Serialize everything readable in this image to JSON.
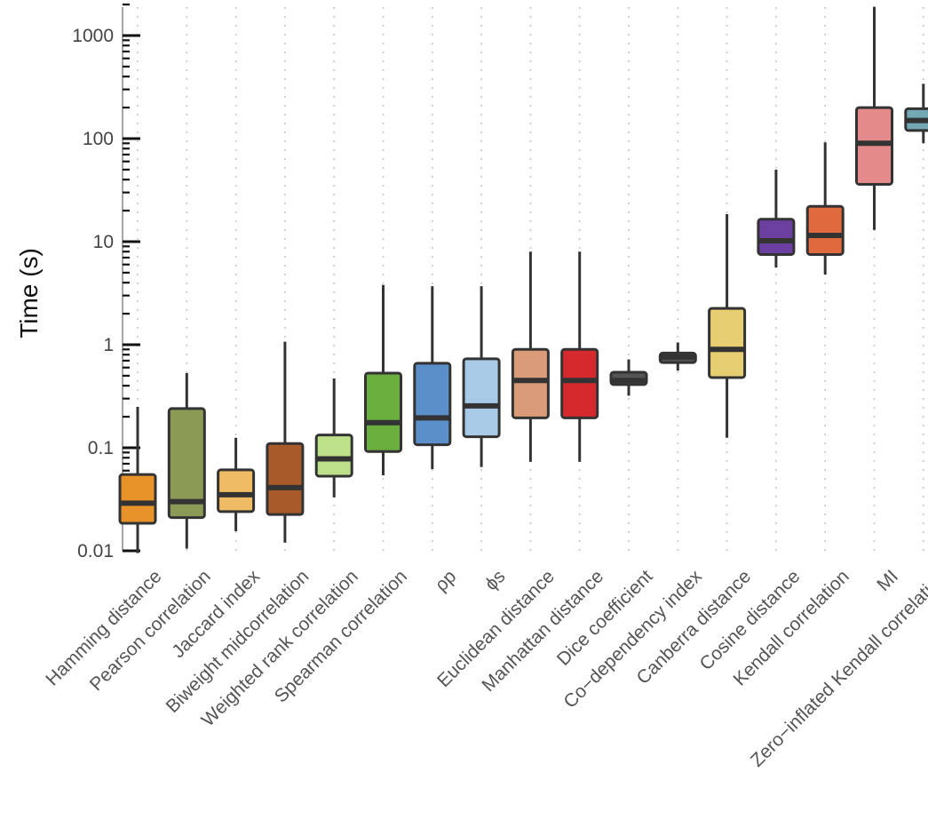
{
  "chart_data": {
    "type": "boxplot",
    "title": "",
    "xlabel": "",
    "ylabel": "Time (s)",
    "yscale": "log10",
    "ylim": [
      0.01,
      2000
    ],
    "yticks": [
      {
        "value": 0.01,
        "label": "0.01"
      },
      {
        "value": 0.1,
        "label": "0.1"
      },
      {
        "value": 1,
        "label": "1"
      },
      {
        "value": 10,
        "label": "10"
      },
      {
        "value": 100,
        "label": "100"
      },
      {
        "value": 1000,
        "label": "1000"
      }
    ],
    "grid": {
      "vertical": true,
      "horizontal": false
    },
    "categories": [
      {
        "label": "Hamming distance",
        "color": "#e8922a",
        "whisker_low": 0.0095,
        "q1": 0.0185,
        "median": 0.029,
        "q3": 0.055,
        "whisker_high": 0.25
      },
      {
        "label": "Pearson correlation",
        "color": "#8b9a55",
        "whisker_low": 0.0105,
        "q1": 0.021,
        "median": 0.03,
        "q3": 0.24,
        "whisker_high": 0.53
      },
      {
        "label": "Jaccard index",
        "color": "#f0bb65",
        "whisker_low": 0.0155,
        "q1": 0.024,
        "median": 0.035,
        "q3": 0.061,
        "whisker_high": 0.125
      },
      {
        "label": "Biweight midcorrelation",
        "color": "#a85a2a",
        "whisker_low": 0.012,
        "q1": 0.0225,
        "median": 0.041,
        "q3": 0.11,
        "whisker_high": 1.07
      },
      {
        "label": "Weighted rank correlation",
        "color": "#bde08a",
        "whisker_low": 0.033,
        "q1": 0.053,
        "median": 0.078,
        "q3": 0.133,
        "whisker_high": 0.47
      },
      {
        "label": "Spearman correlation",
        "color": "#6aae3e",
        "whisker_low": 0.054,
        "q1": 0.092,
        "median": 0.175,
        "q3": 0.53,
        "whisker_high": 3.8
      },
      {
        "label": "ρp",
        "color": "#5b8fc9",
        "whisker_low": 0.062,
        "q1": 0.107,
        "median": 0.195,
        "q3": 0.66,
        "whisker_high": 3.7
      },
      {
        "label": "ϕs",
        "color": "#a8cae6",
        "whisker_low": 0.065,
        "q1": 0.128,
        "median": 0.255,
        "q3": 0.73,
        "whisker_high": 3.7
      },
      {
        "label": "Euclidean distance",
        "color": "#d99b78",
        "whisker_low": 0.073,
        "q1": 0.195,
        "median": 0.45,
        "q3": 0.9,
        "whisker_high": 8.0
      },
      {
        "label": "Manhattan distance",
        "color": "#d6292d",
        "whisker_low": 0.073,
        "q1": 0.195,
        "median": 0.45,
        "q3": 0.9,
        "whisker_high": 8.0
      },
      {
        "label": "Dice coefficient",
        "color": "#555555",
        "whisker_low": 0.32,
        "q1": 0.41,
        "median": 0.45,
        "q3": 0.54,
        "whisker_high": 0.72
      },
      {
        "label": "Co−dependency index",
        "color": "#555555",
        "whisker_low": 0.56,
        "q1": 0.67,
        "median": 0.76,
        "q3": 0.83,
        "whisker_high": 1.05
      },
      {
        "label": "Canberra distance",
        "color": "#e8ce72",
        "whisker_low": 0.125,
        "q1": 0.48,
        "median": 0.9,
        "q3": 2.25,
        "whisker_high": 18.5
      },
      {
        "label": "Cosine distance",
        "color": "#6a3fa0",
        "whisker_low": 5.6,
        "q1": 7.5,
        "median": 10.2,
        "q3": 16.5,
        "whisker_high": 50.0
      },
      {
        "label": "Kendall correlation",
        "color": "#e06a3e",
        "whisker_low": 4.8,
        "q1": 7.5,
        "median": 11.5,
        "q3": 22.0,
        "whisker_high": 92.0
      },
      {
        "label": "MI",
        "color": "#e58a8a",
        "whisker_low": 13.0,
        "q1": 36.0,
        "median": 90.0,
        "q3": 200.0,
        "whisker_high": 1900.0
      },
      {
        "label": "Zero−inflated Kendall correlation",
        "color": "#74a9b4",
        "whisker_low": 90.0,
        "q1": 120.0,
        "median": 150.0,
        "q3": 195.0,
        "whisker_high": 340.0
      }
    ]
  }
}
